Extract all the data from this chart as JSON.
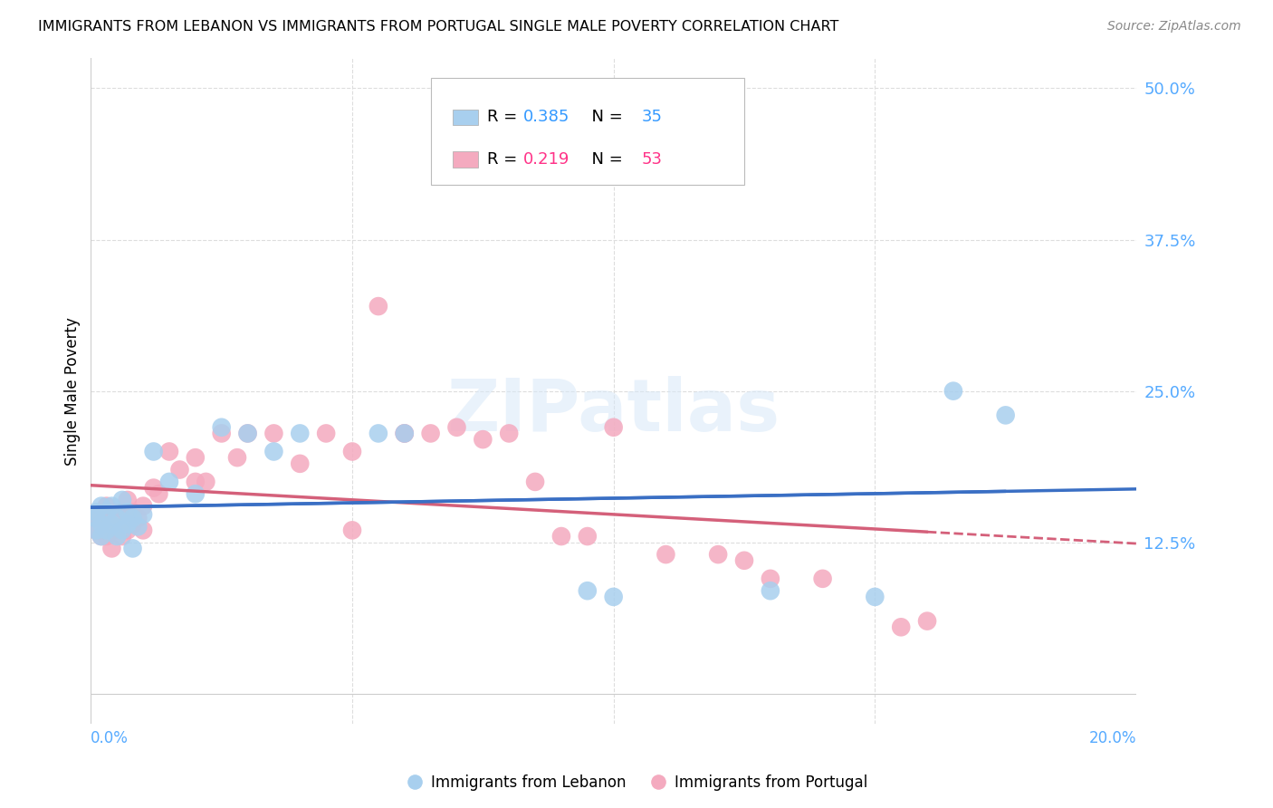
{
  "title": "IMMIGRANTS FROM LEBANON VS IMMIGRANTS FROM PORTUGAL SINGLE MALE POVERTY CORRELATION CHART",
  "source": "Source: ZipAtlas.com",
  "ylabel": "Single Male Poverty",
  "ytick_values": [
    0.125,
    0.25,
    0.375,
    0.5
  ],
  "ytick_labels": [
    "12.5%",
    "25.0%",
    "37.5%",
    "50.0%"
  ],
  "xmin": 0.0,
  "xmax": 0.2,
  "ymin": -0.025,
  "ymax": 0.525,
  "lebanon_color": "#A8CFEE",
  "portugal_color": "#F4AABF",
  "lebanon_line_color": "#3A6FC4",
  "portugal_line_color": "#D4607A",
  "lebanon_R": 0.385,
  "lebanon_N": 35,
  "portugal_R": 0.219,
  "portugal_N": 53,
  "legend_color_R": "#3399FF",
  "legend_color_N": "#FF3366",
  "watermark_text": "ZIPatlas",
  "lebanon_x": [
    0.001,
    0.001,
    0.001,
    0.002,
    0.002,
    0.002,
    0.003,
    0.003,
    0.004,
    0.004,
    0.005,
    0.005,
    0.006,
    0.006,
    0.007,
    0.007,
    0.008,
    0.008,
    0.009,
    0.01,
    0.012,
    0.015,
    0.02,
    0.025,
    0.03,
    0.035,
    0.04,
    0.055,
    0.06,
    0.095,
    0.1,
    0.13,
    0.15,
    0.165,
    0.175
  ],
  "lebanon_y": [
    0.135,
    0.145,
    0.15,
    0.13,
    0.14,
    0.155,
    0.135,
    0.15,
    0.14,
    0.155,
    0.13,
    0.145,
    0.135,
    0.16,
    0.14,
    0.15,
    0.145,
    0.12,
    0.138,
    0.148,
    0.2,
    0.175,
    0.165,
    0.22,
    0.215,
    0.2,
    0.215,
    0.215,
    0.215,
    0.085,
    0.08,
    0.085,
    0.08,
    0.25,
    0.23
  ],
  "portugal_x": [
    0.001,
    0.001,
    0.002,
    0.002,
    0.003,
    0.003,
    0.003,
    0.004,
    0.004,
    0.005,
    0.005,
    0.006,
    0.006,
    0.007,
    0.007,
    0.008,
    0.008,
    0.009,
    0.01,
    0.01,
    0.012,
    0.013,
    0.015,
    0.017,
    0.02,
    0.02,
    0.022,
    0.025,
    0.028,
    0.03,
    0.035,
    0.04,
    0.045,
    0.05,
    0.05,
    0.055,
    0.06,
    0.06,
    0.065,
    0.07,
    0.075,
    0.08,
    0.085,
    0.09,
    0.095,
    0.1,
    0.11,
    0.12,
    0.125,
    0.13,
    0.14,
    0.155,
    0.16
  ],
  "portugal_y": [
    0.135,
    0.145,
    0.13,
    0.145,
    0.13,
    0.14,
    0.155,
    0.12,
    0.135,
    0.135,
    0.15,
    0.13,
    0.145,
    0.135,
    0.16,
    0.14,
    0.15,
    0.145,
    0.135,
    0.155,
    0.17,
    0.165,
    0.2,
    0.185,
    0.175,
    0.195,
    0.175,
    0.215,
    0.195,
    0.215,
    0.215,
    0.19,
    0.215,
    0.2,
    0.135,
    0.32,
    0.215,
    0.215,
    0.215,
    0.22,
    0.21,
    0.215,
    0.175,
    0.13,
    0.13,
    0.22,
    0.115,
    0.115,
    0.11,
    0.095,
    0.095,
    0.055,
    0.06
  ]
}
